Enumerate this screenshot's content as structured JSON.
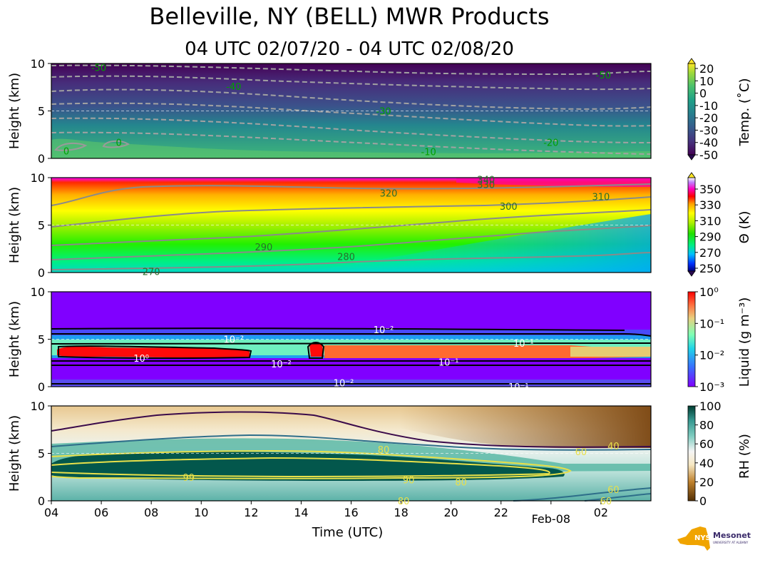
{
  "header": {
    "title": "Belleville, NY (BELL) MWR Products",
    "subtitle": "04 UTC 02/07/20 - 04 UTC 02/08/20"
  },
  "logo": {
    "name": "NYS Mesonet",
    "tagline": "UNIVERSITY AT ALBANY",
    "brand_colors": {
      "state": "#f0a400",
      "text": "#3a2a6a"
    }
  },
  "chart_data": [
    {
      "type": "heatmap",
      "id": "temperature",
      "ylabel": "Height (km)",
      "ylim": [
        0,
        10
      ],
      "yticks": [
        0,
        5,
        10
      ],
      "colorbar": {
        "label": "Temp. (˚C)",
        "ticks": [
          "20",
          "10",
          "0",
          "-10",
          "-20",
          "-30",
          "-40",
          "-50"
        ],
        "range": [
          -50,
          20
        ],
        "colormap": "viridis"
      },
      "contour_labels": [
        {
          "text": "-50",
          "x": 5.9,
          "y": 9.6
        },
        {
          "text": "-50",
          "x": 26.1,
          "y": 8.8
        },
        {
          "text": "-40",
          "x": 11.3,
          "y": 7.6
        },
        {
          "text": "-30",
          "x": 17.3,
          "y": 5.0
        },
        {
          "text": "-20",
          "x": 24.0,
          "y": 1.7
        },
        {
          "text": "-10",
          "x": 19.1,
          "y": 0.7
        },
        {
          "text": "0",
          "x": 4.6,
          "y": 0.8
        },
        {
          "text": "0",
          "x": 6.7,
          "y": 1.7
        }
      ]
    },
    {
      "type": "heatmap",
      "id": "potential-temperature",
      "ylabel": "Height (km)",
      "ylim": [
        0,
        10
      ],
      "yticks": [
        0,
        5,
        10
      ],
      "colorbar": {
        "label": "Θ (K)",
        "ticks": [
          "350",
          "330",
          "310",
          "290",
          "270",
          "250"
        ],
        "range": [
          250,
          360
        ],
        "colormap": "gist_ncar"
      },
      "contour_labels": [
        {
          "text": "320",
          "x": 17.5,
          "y": 8.4
        },
        {
          "text": "310",
          "x": 26.0,
          "y": 8.0
        },
        {
          "text": "300",
          "x": 22.3,
          "y": 7.0
        },
        {
          "text": "290",
          "x": 12.5,
          "y": 2.7
        },
        {
          "text": "280",
          "x": 15.8,
          "y": 1.7
        },
        {
          "text": "270",
          "x": 8.0,
          "y": 0.1
        },
        {
          "text": "330",
          "x": 21.4,
          "y": 9.3
        },
        {
          "text": "340",
          "x": 21.4,
          "y": 9.8
        }
      ]
    },
    {
      "type": "heatmap",
      "id": "liquid",
      "ylabel": "Height (km)",
      "ylim": [
        0,
        10
      ],
      "yticks": [
        0,
        5,
        10
      ],
      "colorbar": {
        "label": "Liquid (g m⁻³)",
        "ticks": [
          "10⁰",
          "10⁻¹",
          "10⁻²",
          "10⁻³"
        ],
        "range": [
          0.001,
          1
        ],
        "scale": "log",
        "colormap": "rainbow"
      },
      "contour_labels": [
        {
          "text": "10⁻²",
          "x": 17.3,
          "y": 6.0
        },
        {
          "text": "10⁻²",
          "x": 11.3,
          "y": 5.0
        },
        {
          "text": "10⁻¹",
          "x": 22.9,
          "y": 4.6
        },
        {
          "text": "10⁰",
          "x": 7.6,
          "y": 3.0
        },
        {
          "text": "10⁻²",
          "x": 13.2,
          "y": 2.4
        },
        {
          "text": "10⁻¹",
          "x": 19.9,
          "y": 2.6
        },
        {
          "text": "10⁻²",
          "x": 15.7,
          "y": 0.4
        },
        {
          "text": "10⁻¹",
          "x": 22.7,
          "y": 0.0
        }
      ]
    },
    {
      "type": "heatmap",
      "id": "relative-humidity",
      "ylabel": "Height (km)",
      "ylim": [
        0,
        10
      ],
      "yticks": [
        0,
        5,
        10
      ],
      "xlabel": "Time (UTC)",
      "xticks": [
        "04",
        "06",
        "08",
        "10",
        "12",
        "14",
        "16",
        "18",
        "20",
        "22",
        "Feb-08",
        "02"
      ],
      "colorbar": {
        "label": "RH (%)",
        "ticks": [
          "100",
          "80",
          "60",
          "40",
          "20",
          "0"
        ],
        "range": [
          0,
          105
        ],
        "colormap": "BrBG"
      },
      "contour_labels": [
        {
          "text": "40",
          "x": 26.5,
          "y": 5.8
        },
        {
          "text": "60",
          "x": 25.2,
          "y": 5.2
        },
        {
          "text": "80",
          "x": 17.3,
          "y": 5.4
        },
        {
          "text": "99",
          "x": 9.5,
          "y": 2.5
        },
        {
          "text": "90",
          "x": 18.3,
          "y": 2.2
        },
        {
          "text": "80",
          "x": 20.4,
          "y": 2.0
        },
        {
          "text": "60",
          "x": 26.5,
          "y": 1.2
        },
        {
          "text": "60",
          "x": 26.2,
          "y": 0.0
        },
        {
          "text": "80",
          "x": 18.1,
          "y": 0.0
        }
      ]
    }
  ]
}
